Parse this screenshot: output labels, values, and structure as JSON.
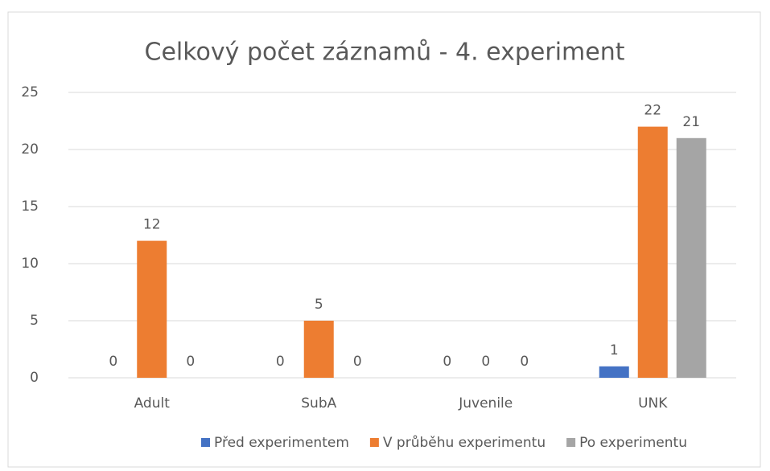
{
  "chart_data": {
    "type": "bar",
    "title": "Celkový počet záznamů - 4. experiment",
    "categories": [
      "Adult",
      "SubA",
      "Juvenile",
      "UNK"
    ],
    "series": [
      {
        "name": "Před experimentem",
        "color": "#4472c4",
        "values": [
          0,
          0,
          0,
          1
        ]
      },
      {
        "name": "V průběhu experimentu",
        "color": "#ed7d31",
        "values": [
          12,
          5,
          0,
          22
        ]
      },
      {
        "name": "Po experimentu",
        "color": "#a5a5a5",
        "values": [
          0,
          0,
          0,
          21
        ]
      }
    ],
    "ylim": [
      0,
      25
    ],
    "yticks": [
      0,
      5,
      10,
      15,
      20,
      25
    ],
    "grid": true,
    "legend": "bottom"
  }
}
